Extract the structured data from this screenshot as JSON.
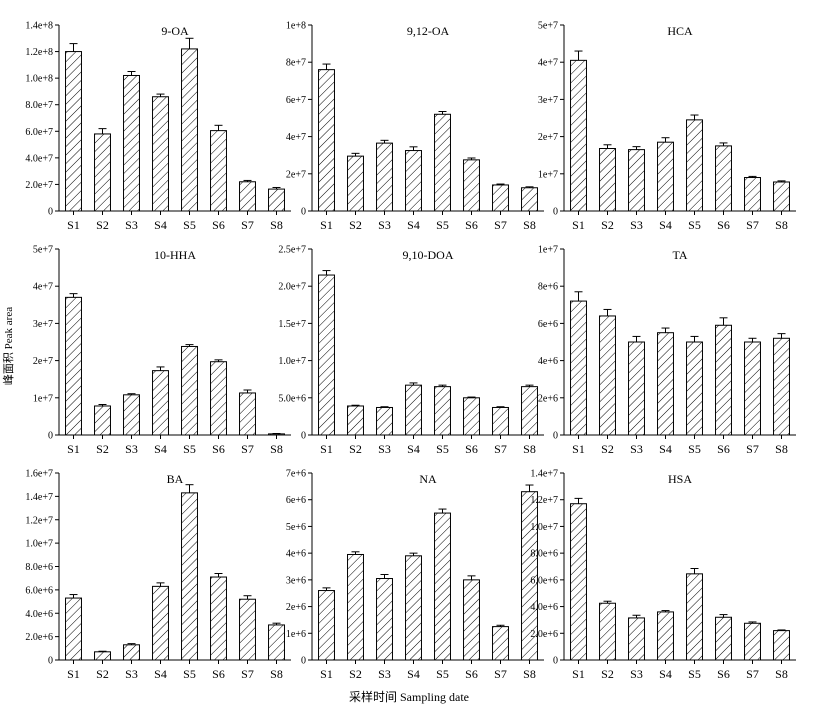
{
  "figure": {
    "ylabel": "峰面积 Peak area",
    "xlabel": "采样时间 Sampling date"
  },
  "chart_data": [
    {
      "type": "bar",
      "title": "9-OA",
      "categories": [
        "S1",
        "S2",
        "S3",
        "S4",
        "S5",
        "S6",
        "S7",
        "S8"
      ],
      "values": [
        120000000,
        58000000,
        102000000,
        86000000,
        122000000,
        60500000,
        22000000,
        16500000
      ],
      "errors": [
        6000000,
        4000000,
        3000000,
        2000000,
        8000000,
        4000000,
        1000000,
        1200000
      ],
      "ylim": [
        0,
        140000000
      ],
      "ticks": [
        {
          "v": 0,
          "label": "0"
        },
        {
          "v": 20000000,
          "label": "2.0e+7"
        },
        {
          "v": 40000000,
          "label": "4.0e+7"
        },
        {
          "v": 60000000,
          "label": "6.0e+7"
        },
        {
          "v": 80000000,
          "label": "8.0e+7"
        },
        {
          "v": 100000000,
          "label": "1.0e+8"
        },
        {
          "v": 120000000,
          "label": "1.2e+8"
        },
        {
          "v": 140000000,
          "label": "1.4e+8"
        }
      ]
    },
    {
      "type": "bar",
      "title": "9,12-OA",
      "categories": [
        "S1",
        "S2",
        "S3",
        "S4",
        "S5",
        "S6",
        "S7",
        "S8"
      ],
      "values": [
        76000000,
        29500000,
        36500000,
        32500000,
        52000000,
        27500000,
        14000000,
        12500000
      ],
      "errors": [
        3000000,
        1500000,
        1500000,
        2000000,
        1500000,
        1000000,
        500000,
        500000
      ],
      "ylim": [
        0,
        100000000
      ],
      "ticks": [
        {
          "v": 0,
          "label": "0"
        },
        {
          "v": 20000000,
          "label": "2e+7"
        },
        {
          "v": 40000000,
          "label": "4e+7"
        },
        {
          "v": 60000000,
          "label": "6e+7"
        },
        {
          "v": 80000000,
          "label": "8e+7"
        },
        {
          "v": 100000000,
          "label": "1e+8"
        }
      ]
    },
    {
      "type": "bar",
      "title": "HCA",
      "categories": [
        "S1",
        "S2",
        "S3",
        "S4",
        "S5",
        "S6",
        "S7",
        "S8"
      ],
      "values": [
        40500000,
        16800000,
        16500000,
        18500000,
        24500000,
        17500000,
        9000000,
        7800000
      ],
      "errors": [
        2500000,
        1000000,
        800000,
        1200000,
        1300000,
        800000,
        300000,
        300000
      ],
      "ylim": [
        0,
        50000000
      ],
      "ticks": [
        {
          "v": 0,
          "label": "0"
        },
        {
          "v": 10000000,
          "label": "1e+7"
        },
        {
          "v": 20000000,
          "label": "2e+7"
        },
        {
          "v": 30000000,
          "label": "3e+7"
        },
        {
          "v": 40000000,
          "label": "4e+7"
        },
        {
          "v": 50000000,
          "label": "5e+7"
        }
      ]
    },
    {
      "type": "bar",
      "title": "10-HHA",
      "categories": [
        "S1",
        "S2",
        "S3",
        "S4",
        "S5",
        "S6",
        "S7",
        "S8"
      ],
      "values": [
        37000000,
        7800000,
        10800000,
        17300000,
        23800000,
        19700000,
        11300000,
        300000
      ],
      "errors": [
        1000000,
        400000,
        300000,
        1000000,
        500000,
        500000,
        800000,
        100000
      ],
      "ylim": [
        0,
        50000000
      ],
      "ticks": [
        {
          "v": 0,
          "label": "0"
        },
        {
          "v": 10000000,
          "label": "1e+7"
        },
        {
          "v": 20000000,
          "label": "2e+7"
        },
        {
          "v": 30000000,
          "label": "3e+7"
        },
        {
          "v": 40000000,
          "label": "4e+7"
        },
        {
          "v": 50000000,
          "label": "5e+7"
        }
      ]
    },
    {
      "type": "bar",
      "title": "9,10-DOA",
      "categories": [
        "S1",
        "S2",
        "S3",
        "S4",
        "S5",
        "S6",
        "S7",
        "S8"
      ],
      "values": [
        21500000,
        3900000,
        3700000,
        6700000,
        6500000,
        5000000,
        3700000,
        6500000
      ],
      "errors": [
        600000,
        100000,
        100000,
        300000,
        200000,
        100000,
        100000,
        200000
      ],
      "ylim": [
        0,
        25000000
      ],
      "ticks": [
        {
          "v": 0,
          "label": "0"
        },
        {
          "v": 5000000,
          "label": "5.0e+6"
        },
        {
          "v": 10000000,
          "label": "1.0e+7"
        },
        {
          "v": 15000000,
          "label": "1.5e+7"
        },
        {
          "v": 20000000,
          "label": "2.0e+7"
        },
        {
          "v": 25000000,
          "label": "2.5e+7"
        }
      ]
    },
    {
      "type": "bar",
      "title": "TA",
      "categories": [
        "S1",
        "S2",
        "S3",
        "S4",
        "S5",
        "S6",
        "S7",
        "S8"
      ],
      "values": [
        7200000,
        6400000,
        5000000,
        5500000,
        5000000,
        5900000,
        5000000,
        5200000
      ],
      "errors": [
        500000,
        350000,
        300000,
        250000,
        300000,
        400000,
        200000,
        250000
      ],
      "ylim": [
        0,
        10000000
      ],
      "ticks": [
        {
          "v": 0,
          "label": "0"
        },
        {
          "v": 2000000,
          "label": "2e+6"
        },
        {
          "v": 4000000,
          "label": "4e+6"
        },
        {
          "v": 6000000,
          "label": "6e+6"
        },
        {
          "v": 8000000,
          "label": "8e+6"
        },
        {
          "v": 10000000,
          "label": "1e+7"
        }
      ]
    },
    {
      "type": "bar",
      "title": "BA",
      "categories": [
        "S1",
        "S2",
        "S3",
        "S4",
        "S5",
        "S6",
        "S7",
        "S8"
      ],
      "values": [
        5300000,
        700000,
        1300000,
        6300000,
        14300000,
        7100000,
        5200000,
        3000000
      ],
      "errors": [
        300000,
        50000,
        100000,
        300000,
        700000,
        300000,
        300000,
        150000
      ],
      "ylim": [
        0,
        16000000
      ],
      "ticks": [
        {
          "v": 0,
          "label": "0"
        },
        {
          "v": 2000000,
          "label": "2.0e+6"
        },
        {
          "v": 4000000,
          "label": "4.0e+6"
        },
        {
          "v": 6000000,
          "label": "6.0e+6"
        },
        {
          "v": 8000000,
          "label": "8.0e+6"
        },
        {
          "v": 10000000,
          "label": "1.0e+7"
        },
        {
          "v": 12000000,
          "label": "1.2e+7"
        },
        {
          "v": 14000000,
          "label": "1.4e+7"
        },
        {
          "v": 16000000,
          "label": "1.6e+7"
        }
      ]
    },
    {
      "type": "bar",
      "title": "NA",
      "categories": [
        "S1",
        "S2",
        "S3",
        "S4",
        "S5",
        "S6",
        "S7",
        "S8"
      ],
      "values": [
        2600000,
        3950000,
        3050000,
        3900000,
        5500000,
        3000000,
        1250000,
        6300000
      ],
      "errors": [
        100000,
        100000,
        150000,
        100000,
        150000,
        150000,
        50000,
        250000
      ],
      "ylim": [
        0,
        7000000
      ],
      "ticks": [
        {
          "v": 0,
          "label": "0"
        },
        {
          "v": 1000000,
          "label": "1e+6"
        },
        {
          "v": 2000000,
          "label": "2e+6"
        },
        {
          "v": 3000000,
          "label": "3e+6"
        },
        {
          "v": 4000000,
          "label": "4e+6"
        },
        {
          "v": 5000000,
          "label": "5e+6"
        },
        {
          "v": 6000000,
          "label": "6e+6"
        },
        {
          "v": 7000000,
          "label": "7e+6"
        }
      ]
    },
    {
      "type": "bar",
      "title": "HSA",
      "categories": [
        "S1",
        "S2",
        "S3",
        "S4",
        "S5",
        "S6",
        "S7",
        "S8"
      ],
      "values": [
        11700000,
        4250000,
        3150000,
        3600000,
        6450000,
        3200000,
        2750000,
        2200000
      ],
      "errors": [
        400000,
        150000,
        200000,
        100000,
        400000,
        200000,
        100000,
        50000
      ],
      "ylim": [
        0,
        14000000
      ],
      "ticks": [
        {
          "v": 0,
          "label": "0"
        },
        {
          "v": 2000000,
          "label": "2.0e+6"
        },
        {
          "v": 4000000,
          "label": "4.0e+6"
        },
        {
          "v": 6000000,
          "label": "6.0e+6"
        },
        {
          "v": 8000000,
          "label": "8.0e+6"
        },
        {
          "v": 10000000,
          "label": "1.0e+7"
        },
        {
          "v": 12000000,
          "label": "1.2e+7"
        },
        {
          "v": 14000000,
          "label": "1.4e+7"
        }
      ]
    }
  ]
}
